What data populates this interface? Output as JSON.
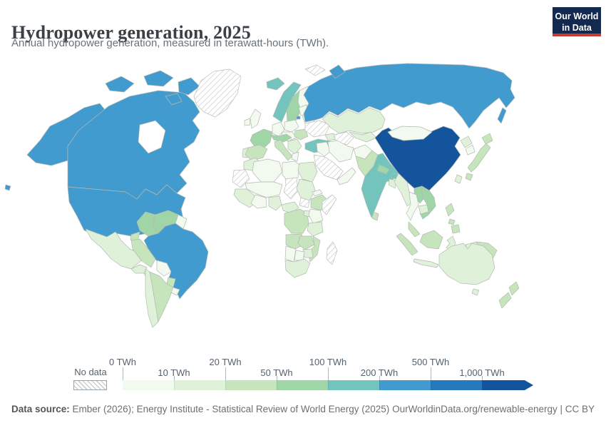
{
  "header": {
    "title": "Hydropower generation, 2025",
    "subtitle": "Annual hydropower generation, measured in terawatt-hours (TWh).",
    "logo": {
      "line1": "Our World",
      "line2": "in Data",
      "bg": "#13294f",
      "bar": "#c43b32"
    }
  },
  "legend": {
    "no_data_label": "No data",
    "unit_labels": [
      "0 TWh",
      "10 TWh",
      "20 TWh",
      "50 TWh",
      "100 TWh",
      "200 TWh",
      "500 TWh",
      "1,000 TWh"
    ]
  },
  "footer": {
    "source_label": "Data source:",
    "source_text": " Ember (2026); Energy Institute - Statistical Review of World Energy (2025)",
    "right_text": "OurWorldinData.org/renewable-energy | CC BY"
  },
  "chart_data": {
    "type": "choropleth",
    "title": "Hydropower generation, 2025",
    "unit": "TWh",
    "legend_bins": [
      "0-10",
      "10-20",
      "20-50",
      "50-100",
      "100-200",
      "200-500",
      "500-1,000",
      "1,000+"
    ],
    "bin_colors": [
      "#f2f9ee",
      "#e0f1d9",
      "#c6e5bc",
      "#a0d6a7",
      "#72c4bd",
      "#429bce",
      "#2679bd",
      "#14549c"
    ],
    "values_by_bin": {
      "1000+": [
        "China"
      ],
      "200-500": [
        "Canada",
        "United States",
        "Brazil",
        "Russia"
      ],
      "100-200": [
        "India",
        "Norway",
        "Turkey",
        "Iceland",
        "Bhutan"
      ],
      "50-100": [
        "France",
        "Sweden",
        "Austria/Switzerland",
        "Colombia",
        "Venezuela",
        "Vietnam",
        "Laos",
        "Nepal"
      ],
      "20-50": [
        "Spain",
        "Italy",
        "Romania",
        "Japan",
        "Peru",
        "Ecuador",
        "Argentina",
        "Pakistan",
        "Malaysia",
        "Indonesia",
        "Philippines",
        "New Zealand",
        "Ethiopia",
        "DR Congo",
        "Angola",
        "Zambia",
        "Mozambique",
        "Paraguay"
      ],
      "10-20": [
        "Mexico",
        "Chile",
        "Portugal",
        "Kazakhstan",
        "Myanmar",
        "Australia",
        "Egypt",
        "Sudan",
        "Nigeria",
        "Tanzania",
        "Zimbabwe",
        "South Africa",
        "North Korea"
      ],
      "0-10": [
        "United Kingdom",
        "Germany",
        "Poland",
        "Finland",
        "Mongolia",
        "Thailand",
        "Iran",
        "Afghanistan",
        "Algeria",
        "Libya",
        "Namibia",
        "Botswana",
        "Bolivia",
        "Uruguay",
        "Cuba",
        "South Korea"
      ]
    },
    "no_data": [
      "Greenland",
      "Ukraine",
      "Turkmenistan",
      "Saudi Arabia",
      "Chad",
      "South Sudan",
      "Somalia",
      "Madagascar",
      "Western Sahara",
      "Svalbard"
    ]
  },
  "map": {
    "ocean": "#ffffff",
    "palette": {
      "b0": "#f2f9ee",
      "b1": "#e0f1d9",
      "b2": "#c6e5bc",
      "b3": "#a0d6a7",
      "b4": "#72c4bd",
      "b5": "#429bce",
      "b6": "#2679bd",
      "b7": "#14549c"
    },
    "region_buckets": {
      "alaska": "b5",
      "canada": "b5",
      "usa": "b5",
      "hawaii": "b5",
      "greenland": "nodata",
      "mexico": "b1",
      "guatemala": "b1",
      "panama-cr": "b1",
      "cuba": "b0",
      "hispaniola": "b1",
      "colombia": "b3",
      "venezuela": "b3",
      "guyanas": "b0",
      "ecuador": "b2",
      "peru": "b2",
      "brazil": "b5",
      "bolivia": "b0",
      "paraguay": "b2",
      "chile": "b1",
      "argentina": "b2",
      "uruguay": "b0",
      "iceland": "b4",
      "norway": "b4",
      "sweden": "b3",
      "finland": "b0",
      "uk": "b0",
      "ireland": "b0",
      "portugal": "b1",
      "spain": "b2",
      "france": "b3",
      "germany": "b0",
      "poland": "b0",
      "czech-hungary": "b0",
      "alps": "b3",
      "italy": "b2",
      "sicily": "b2",
      "balkans": "b1",
      "romania": "b2",
      "greece": "b0",
      "belarus": "b0",
      "baltics": "b0",
      "kaliningrad": "b5",
      "ukraine": "nodata",
      "caucasus": "b1",
      "turkey": "b4",
      "russia": "b5",
      "novaya-zemlya": "b5",
      "svalbard": "nodata",
      "sakhalin": "b5",
      "kazakhstan": "b1",
      "turkmenistan": "nodata",
      "uzbekistan": "b1",
      "iran": "b0",
      "iraq-syria": "b0",
      "saudi-arabia": "nodata",
      "yemen-oman": "b0",
      "afghanistan": "b0",
      "pakistan": "b2",
      "india": "b4",
      "nepal": "b3",
      "bhutan": "b4",
      "bangladesh": "b1",
      "sri-lanka": "b2",
      "china": "b7",
      "hainan": "b7",
      "mongolia": "b0",
      "north-korea": "b1",
      "south-korea": "b0",
      "hokkaido": "b2",
      "honshu": "b2",
      "kyushu": "b2",
      "taiwan": "b1",
      "myanmar": "b1",
      "thailand": "b0",
      "laos": "b3",
      "vietnam": "b3",
      "cambodia": "b1",
      "malaysia": "b2",
      "sumatra": "b2",
      "java": "b1",
      "borneo": "b2",
      "sulawesi": "b1",
      "west-papua": "b1",
      "png": "b2",
      "luzon": "b2",
      "visayas": "b2",
      "mindanao": "b2",
      "morocco": "b1",
      "western-sahara": "nodata",
      "algeria": "b0",
      "libya": "b0",
      "egypt": "b1",
      "mali-niger": "b0",
      "chad": "nodata",
      "sudan": "b1",
      "south-sudan": "nodata",
      "eritrea": "b0",
      "ethiopia": "b2",
      "somalia": "nodata",
      "senegal-guinea": "b1",
      "ghana-ivory": "b0",
      "nigeria": "b1",
      "cameroon-car": "b1",
      "drcongo": "b2",
      "uganda": "b1",
      "kenya": "b0",
      "tanzania": "b1",
      "angola": "b2",
      "zambia": "b2",
      "mozambique": "b2",
      "zimbabwe": "b1",
      "namibia": "b0",
      "botswana": "b0",
      "south-africa": "b1",
      "madagascar": "nodata",
      "australia": "b1",
      "tasmania": "b1",
      "nz-north": "b2",
      "nz-south": "b2"
    }
  }
}
